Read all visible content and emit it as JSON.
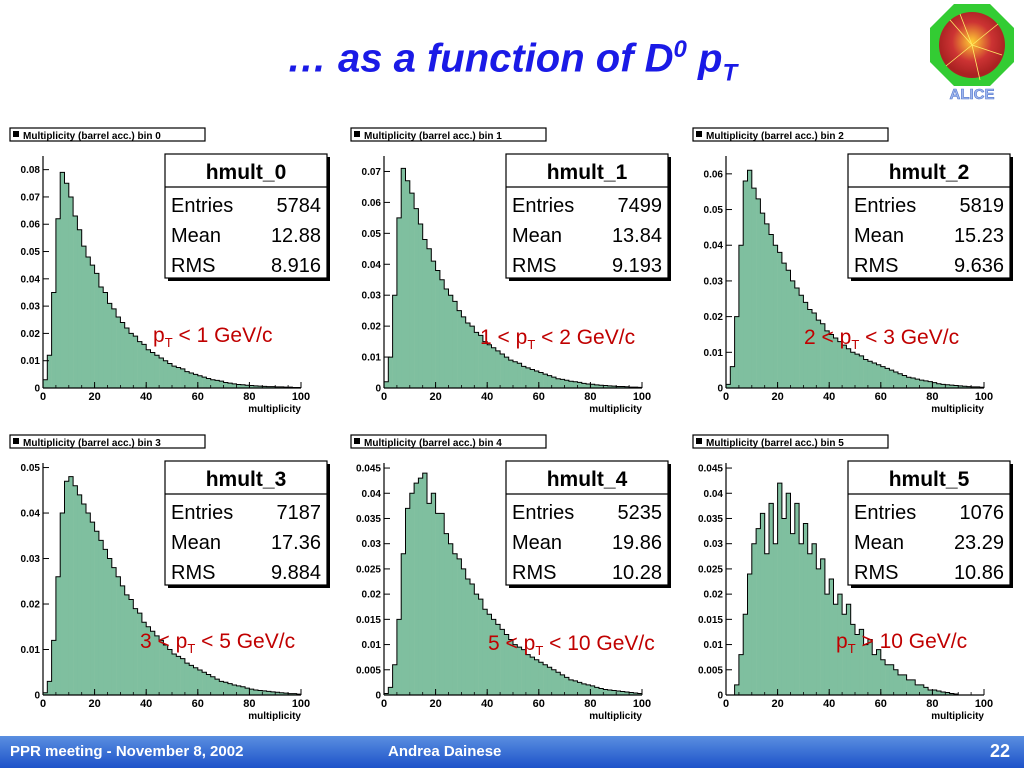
{
  "title": {
    "prefix": "… as a function of D",
    "sup": "0",
    "p": " p",
    "sub": "T"
  },
  "logo": {
    "text": "ALICE"
  },
  "footer": {
    "left": "PPR meeting - November 8, 2002",
    "author": "Andrea Dainese",
    "page": "22"
  },
  "colors": {
    "title": "#1a1ae6",
    "label": "#c00000",
    "fill": "#7fbf9f",
    "footer": "#2a5fd0"
  },
  "chart_data": [
    {
      "type": "bar",
      "frame_title": "Multiplicity (barrel acc.)  bin 0",
      "stats_title": "hmult_0",
      "stats": [
        [
          "Entries",
          "5784"
        ],
        [
          "Mean",
          "12.88"
        ],
        [
          "RMS",
          "8.916"
        ]
      ],
      "label": {
        "pre": "",
        "p": "p",
        "sub": "T",
        "post": " < 1 GeV/c"
      },
      "xlabel": "multiplicity",
      "xlim": [
        0,
        100
      ],
      "ylim": [
        0,
        0.085
      ],
      "xticks": [
        "0",
        "20",
        "40",
        "60",
        "80",
        "100"
      ],
      "yticks": [
        [
          0,
          "0"
        ],
        [
          0.01,
          "0.01"
        ],
        [
          0.02,
          "0.02"
        ],
        [
          0.03,
          "0.03"
        ],
        [
          0.04,
          "0.04"
        ],
        [
          0.05,
          "0.05"
        ],
        [
          0.06,
          "0.06"
        ],
        [
          0.07,
          "0.07"
        ],
        [
          0.08,
          "0.08"
        ]
      ],
      "values": [
        0.003,
        0.012,
        0.035,
        0.062,
        0.079,
        0.075,
        0.07,
        0.063,
        0.058,
        0.052,
        0.048,
        0.045,
        0.042,
        0.037,
        0.035,
        0.031,
        0.029,
        0.026,
        0.024,
        0.022,
        0.02,
        0.019,
        0.017,
        0.016,
        0.014,
        0.013,
        0.012,
        0.011,
        0.01,
        0.009,
        0.008,
        0.0075,
        0.007,
        0.006,
        0.0055,
        0.005,
        0.0045,
        0.004,
        0.0035,
        0.003,
        0.0028,
        0.0025,
        0.002,
        0.0018,
        0.0015,
        0.0013,
        0.0012,
        0.001,
        0.0009,
        0.0008,
        0.0007,
        0.0006,
        0.0005,
        0.0005,
        0.0004,
        0.0004,
        0.0003,
        0.0003,
        0.0002,
        0.0002
      ]
    },
    {
      "type": "bar",
      "frame_title": "Multiplicity (barrel acc.)  bin 1",
      "stats_title": "hmult_1",
      "stats": [
        [
          "Entries",
          "7499"
        ],
        [
          "Mean",
          "13.84"
        ],
        [
          "RMS",
          "9.193"
        ]
      ],
      "label": {
        "pre": "1 < ",
        "p": "p",
        "sub": "T",
        "post": " < 2 GeV/c"
      },
      "xlabel": "multiplicity",
      "xlim": [
        0,
        100
      ],
      "ylim": [
        0,
        0.075
      ],
      "xticks": [
        "0",
        "20",
        "40",
        "60",
        "80",
        "100"
      ],
      "yticks": [
        [
          0,
          "0"
        ],
        [
          0.01,
          "0.01"
        ],
        [
          0.02,
          "0.02"
        ],
        [
          0.03,
          "0.03"
        ],
        [
          0.04,
          "0.04"
        ],
        [
          0.05,
          "0.05"
        ],
        [
          0.06,
          "0.06"
        ],
        [
          0.07,
          "0.07"
        ]
      ],
      "values": [
        0.002,
        0.01,
        0.03,
        0.055,
        0.071,
        0.067,
        0.063,
        0.058,
        0.053,
        0.048,
        0.045,
        0.041,
        0.038,
        0.035,
        0.032,
        0.03,
        0.028,
        0.025,
        0.023,
        0.021,
        0.02,
        0.018,
        0.017,
        0.015,
        0.014,
        0.013,
        0.012,
        0.011,
        0.01,
        0.009,
        0.0085,
        0.008,
        0.007,
        0.0065,
        0.006,
        0.0055,
        0.005,
        0.0045,
        0.004,
        0.0035,
        0.003,
        0.0028,
        0.0025,
        0.0022,
        0.002,
        0.0018,
        0.0015,
        0.0013,
        0.0012,
        0.001,
        0.0009,
        0.0008,
        0.0007,
        0.0006,
        0.0005,
        0.0005,
        0.0004,
        0.0003,
        0.0003,
        0.0002
      ]
    },
    {
      "type": "bar",
      "frame_title": "Multiplicity (barrel acc.)  bin 2",
      "stats_title": "hmult_2",
      "stats": [
        [
          "Entries",
          "5819"
        ],
        [
          "Mean",
          "15.23"
        ],
        [
          "RMS",
          "9.636"
        ]
      ],
      "label": {
        "pre": "2 < ",
        "p": "p",
        "sub": "T",
        "post": " < 3 GeV/c"
      },
      "xlabel": "multiplicity",
      "xlim": [
        0,
        100
      ],
      "ylim": [
        0,
        0.065
      ],
      "xticks": [
        "0",
        "20",
        "40",
        "60",
        "80",
        "100"
      ],
      "yticks": [
        [
          0,
          "0"
        ],
        [
          0.01,
          "0.01"
        ],
        [
          0.02,
          "0.02"
        ],
        [
          0.03,
          "0.03"
        ],
        [
          0.04,
          "0.04"
        ],
        [
          0.05,
          "0.05"
        ],
        [
          0.06,
          "0.06"
        ]
      ],
      "values": [
        0.001,
        0.006,
        0.02,
        0.04,
        0.058,
        0.061,
        0.056,
        0.053,
        0.049,
        0.046,
        0.043,
        0.04,
        0.038,
        0.035,
        0.033,
        0.03,
        0.028,
        0.026,
        0.024,
        0.022,
        0.021,
        0.019,
        0.018,
        0.016,
        0.015,
        0.014,
        0.013,
        0.012,
        0.011,
        0.01,
        0.0095,
        0.009,
        0.008,
        0.0075,
        0.007,
        0.0065,
        0.006,
        0.0055,
        0.005,
        0.0045,
        0.004,
        0.0035,
        0.003,
        0.0028,
        0.0025,
        0.0022,
        0.002,
        0.0018,
        0.0015,
        0.0012,
        0.001,
        0.0009,
        0.0008,
        0.0007,
        0.0006,
        0.0005,
        0.0004,
        0.0003,
        0.0003,
        0.0002
      ]
    },
    {
      "type": "bar",
      "frame_title": "Multiplicity (barrel acc.)  bin 3",
      "stats_title": "hmult_3",
      "stats": [
        [
          "Entries",
          "7187"
        ],
        [
          "Mean",
          "17.36"
        ],
        [
          "RMS",
          "9.884"
        ]
      ],
      "label": {
        "pre": "3 < ",
        "p": "p",
        "sub": "T",
        "post": " < 5 GeV/c"
      },
      "xlabel": "multiplicity",
      "xlim": [
        0,
        100
      ],
      "ylim": [
        0,
        0.051
      ],
      "xticks": [
        "0",
        "20",
        "40",
        "60",
        "80",
        "100"
      ],
      "yticks": [
        [
          0,
          "0"
        ],
        [
          0.01,
          "0.01"
        ],
        [
          0.02,
          "0.02"
        ],
        [
          0.03,
          "0.03"
        ],
        [
          0.04,
          "0.04"
        ],
        [
          0.05,
          "0.05"
        ]
      ],
      "values": [
        0.0005,
        0.003,
        0.012,
        0.026,
        0.04,
        0.047,
        0.048,
        0.046,
        0.044,
        0.042,
        0.04,
        0.038,
        0.036,
        0.034,
        0.032,
        0.03,
        0.028,
        0.026,
        0.024,
        0.022,
        0.021,
        0.019,
        0.018,
        0.016,
        0.015,
        0.014,
        0.013,
        0.012,
        0.011,
        0.01,
        0.009,
        0.0085,
        0.008,
        0.007,
        0.0065,
        0.006,
        0.0055,
        0.005,
        0.0045,
        0.004,
        0.0035,
        0.003,
        0.0028,
        0.0025,
        0.0022,
        0.002,
        0.0018,
        0.0015,
        0.0013,
        0.0011,
        0.001,
        0.0009,
        0.0008,
        0.0007,
        0.0006,
        0.0005,
        0.0004,
        0.0003,
        0.0003,
        0.0002
      ]
    },
    {
      "type": "bar",
      "frame_title": "Multiplicity (barrel acc.)  bin 4",
      "stats_title": "hmult_4",
      "stats": [
        [
          "Entries",
          "5235"
        ],
        [
          "Mean",
          "19.86"
        ],
        [
          "RMS",
          "10.28"
        ]
      ],
      "label": {
        "pre": "5 < ",
        "p": "p",
        "sub": "T",
        "post": " < 10 GeV/c"
      },
      "xlabel": "multiplicity",
      "xlim": [
        0,
        100
      ],
      "ylim": [
        0,
        0.046
      ],
      "xticks": [
        "0",
        "20",
        "40",
        "60",
        "80",
        "100"
      ],
      "yticks": [
        [
          0,
          "0"
        ],
        [
          0.005,
          "0.005"
        ],
        [
          0.01,
          "0.01"
        ],
        [
          0.015,
          "0.015"
        ],
        [
          0.02,
          "0.02"
        ],
        [
          0.025,
          "0.025"
        ],
        [
          0.03,
          "0.03"
        ],
        [
          0.035,
          "0.035"
        ],
        [
          0.04,
          "0.04"
        ],
        [
          0.045,
          "0.045"
        ]
      ],
      "values": [
        0.0003,
        0.0015,
        0.006,
        0.015,
        0.028,
        0.037,
        0.04,
        0.042,
        0.043,
        0.044,
        0.038,
        0.04,
        0.036,
        0.036,
        0.032,
        0.03,
        0.028,
        0.027,
        0.025,
        0.023,
        0.022,
        0.02,
        0.019,
        0.017,
        0.016,
        0.015,
        0.014,
        0.013,
        0.012,
        0.011,
        0.01,
        0.0095,
        0.009,
        0.008,
        0.0075,
        0.007,
        0.0065,
        0.006,
        0.0055,
        0.005,
        0.0045,
        0.004,
        0.0035,
        0.003,
        0.0028,
        0.0025,
        0.0022,
        0.002,
        0.0018,
        0.0015,
        0.0013,
        0.0011,
        0.001,
        0.0009,
        0.0008,
        0.0007,
        0.0006,
        0.0005,
        0.0004,
        0.0003
      ]
    },
    {
      "type": "bar",
      "frame_title": "Multiplicity (barrel acc.)  bin 5",
      "stats_title": "hmult_5",
      "stats": [
        [
          "Entries",
          "1076"
        ],
        [
          "Mean",
          "23.29"
        ],
        [
          "RMS",
          "10.86"
        ]
      ],
      "label": {
        "pre": "",
        "p": "p",
        "sub": "T",
        "post": " > 10 GeV/c"
      },
      "xlabel": "multiplicity",
      "xlim": [
        0,
        100
      ],
      "ylim": [
        0,
        0.046
      ],
      "xticks": [
        "0",
        "20",
        "40",
        "60",
        "80",
        "100"
      ],
      "yticks": [
        [
          0,
          "0"
        ],
        [
          0.005,
          "0.005"
        ],
        [
          0.01,
          "0.01"
        ],
        [
          0.015,
          "0.015"
        ],
        [
          0.02,
          "0.02"
        ],
        [
          0.025,
          "0.025"
        ],
        [
          0.03,
          "0.03"
        ],
        [
          0.035,
          "0.035"
        ],
        [
          0.04,
          "0.04"
        ],
        [
          0.045,
          "0.045"
        ]
      ],
      "values": [
        0,
        0,
        0.002,
        0.008,
        0.016,
        0.024,
        0.03,
        0.033,
        0.036,
        0.028,
        0.038,
        0.03,
        0.042,
        0.035,
        0.04,
        0.032,
        0.038,
        0.03,
        0.034,
        0.028,
        0.03,
        0.025,
        0.027,
        0.02,
        0.023,
        0.018,
        0.02,
        0.016,
        0.018,
        0.014,
        0.012,
        0.013,
        0.01,
        0.011,
        0.008,
        0.009,
        0.007,
        0.006,
        0.006,
        0.005,
        0.004,
        0.004,
        0.003,
        0.003,
        0.002,
        0.002,
        0.0015,
        0.001,
        0.001,
        0.0008,
        0.0006,
        0.0005,
        0.0003,
        0.0002,
        0,
        0,
        0,
        0,
        0,
        0
      ]
    }
  ]
}
